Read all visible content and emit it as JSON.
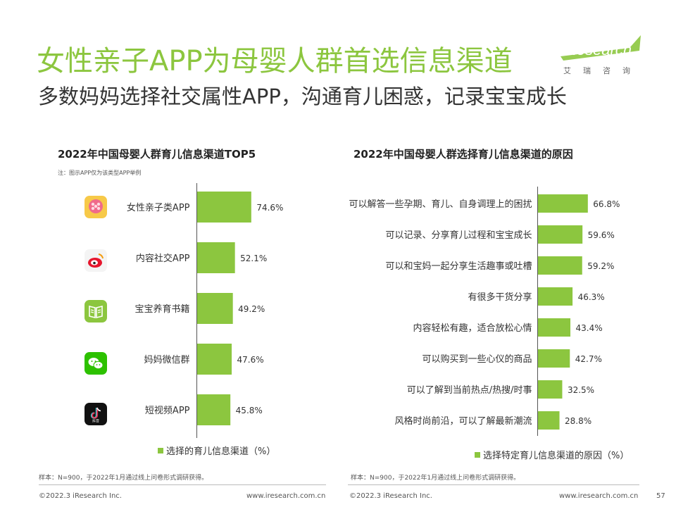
{
  "header": {
    "title": "女性亲子APP为母婴人群首选信息渠道",
    "subtitle": "多数妈妈选择社交属性APP，沟通育儿困惑，记录宝宝成长"
  },
  "logo": {
    "name": "iResearch",
    "chinese": "艾瑞咨询"
  },
  "colors": {
    "accent": "#8cc63f"
  },
  "left_panel": {
    "title": "2022年中国母婴人群育儿信息渠道TOP5",
    "note": "注：图示APP仅为该类型APP举例",
    "legend": "选择的育儿信息渠道（%）",
    "icons": [
      "meiyou-app-icon",
      "weibo-icon",
      "book-icon",
      "wechat-icon",
      "douyin-icon"
    ],
    "douyin_text": "抖音"
  },
  "right_panel": {
    "title": "2022年中国母婴人群选择育儿信息渠道的原因",
    "legend": "选择特定育儿信息渠道的原因（%）"
  },
  "chart_data": [
    {
      "type": "bar",
      "orientation": "horizontal",
      "title": "2022年中国母婴人群育儿信息渠道TOP5",
      "categories": [
        "女性亲子类APP",
        "内容社交APP",
        "宝宝养育书籍",
        "妈妈微信群",
        "短视频APP"
      ],
      "values": [
        74.6,
        52.1,
        49.2,
        47.6,
        45.8
      ],
      "value_labels": [
        "74.6%",
        "52.1%",
        "49.2%",
        "47.6%",
        "45.8%"
      ],
      "unit": "%",
      "legend": "选择的育儿信息渠道（%）",
      "grid": false
    },
    {
      "type": "bar",
      "orientation": "horizontal",
      "title": "2022年中国母婴人群选择育儿信息渠道的原因",
      "categories": [
        "可以解答一些孕期、育儿、自身调理上的困扰",
        "可以记录、分享育儿过程和宝宝成长",
        "可以和宝妈一起分享生活趣事或吐槽",
        "有很多干货分享",
        "内容轻松有趣，适合放松心情",
        "可以购买到一些心仪的商品",
        "可以了解到当前热点/热搜/时事",
        "风格时尚前沿，可以了解最新潮流"
      ],
      "values": [
        66.8,
        59.6,
        59.2,
        46.3,
        43.4,
        42.7,
        32.5,
        28.8
      ],
      "value_labels": [
        "66.8%",
        "59.6%",
        "59.2%",
        "46.3%",
        "43.4%",
        "42.7%",
        "32.5%",
        "28.8%"
      ],
      "unit": "%",
      "legend": "选择特定育儿信息渠道的原因（%）",
      "grid": false
    }
  ],
  "footer": {
    "sample_left": "样本：N=900，于2022年1月通过线上问卷形式调研获得。",
    "sample_right": "样本：N=900，于2022年1月通过线上问卷形式调研获得。",
    "copyright_left": "©2022.3 iResearch Inc.",
    "url_left": "www.iresearch.com.cn",
    "copyright_right": "©2022.3 iResearch Inc.",
    "url_right": "www.iresearch.com.cn",
    "page_number": "57"
  }
}
